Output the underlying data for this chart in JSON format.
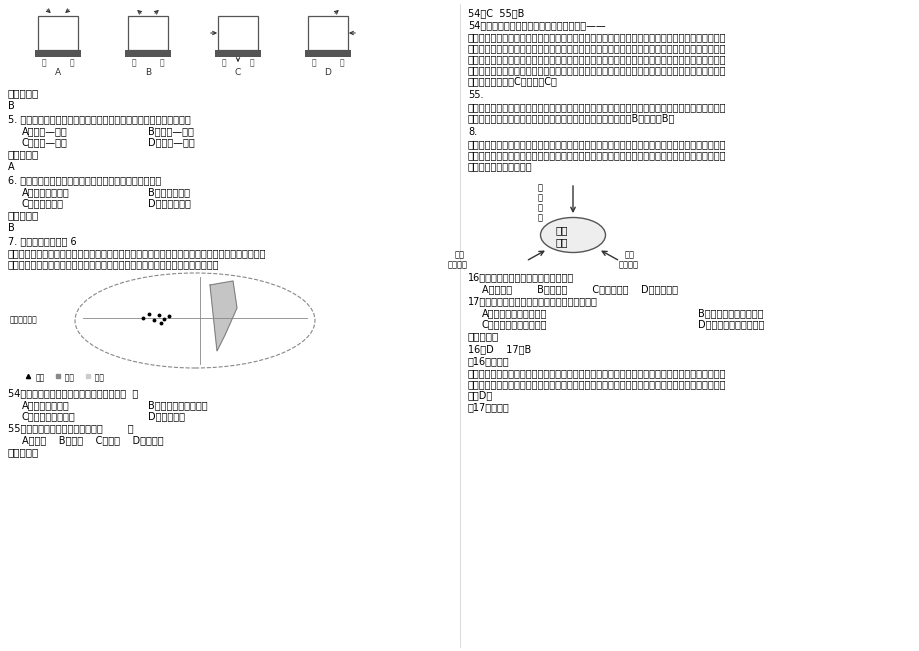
{
  "bg_color": "#ffffff",
  "text_color": "#000000",
  "q4_answer": "B",
  "q5_text": "5. 我国高速铁路网建成后，下列区段中，民航客运业受冲击最大的是",
  "q5_A": "A．武汉—广州",
  "q5_B": "B．杭州—上海",
  "q5_C": "C．成都—上海",
  "q5_D": "D．兰州—北京",
  "q5_answer": "A",
  "q6_text": "6. 亚洲水稻种植实现大规模机械化生产的主要限制条件是",
  "q6_A": "A．资金投入太多",
  "q6_B": "B．田地规模小",
  "q6_C": "C．降水量太小",
  "q6_D": "D．科技水平低",
  "q6_answer": "B",
  "q7_text": "7. 我国海南省某游客 6",
  "q7_body1": "月到费尔南迪纳岛旅行，他在朋友圈分享到：与家乡相比，这里甚是凉爽，靠海地带少见林木，但草",
  "q7_body2": "类茂盛，不时有大雾润通而来。下图示意费尔南迪纳岛位置，据此完成下面小题。",
  "q54_text": "54．该岛靠海地带少见林木的主要原因是（  ）",
  "q54_A": "A．盛行上升气流",
  "q54_B": "B．副热带高压的影响",
  "q54_C": "C．秘鲁寒流的影响",
  "q54_D": "D．地势较低",
  "q55_text": "55．该游客到此旅行，需要注意（        ）",
  "q55_opts": "A．防雨    B．防晒    C．防寒    D．防中暑",
  "r_answer_54_55": "54．C  55．B",
  "r_54_head": "54．费尔南迪纳岛最位于赤道，但受冷海流——",
  "r_54_1": "秘鲁寒流的影响。秘鲁寒流沿南美西海岸先向北流再转向西北流，费尔南迪纳岛被冷海流包围，使其",
  "r_54_2": "周围海水温度很低，当海面上空冷空气吹到岛上，使海岛的气温低，含水汽又少，再加上岛面积小，",
  "r_54_3": "海域小，空气对流小，使秘鲁海流的影响大于太阳辐射的影响，使气候凉爽干燥，草木茂盛。只有最",
  "r_54_4": "高山的东南坡因位于东南信风的迎风坡，能「截住」一些湿润气流，形成雨雾，因此海拔较高的过渡",
  "r_54_5": "地带覆盖有森林。C对，故选C。",
  "r_55_num": "55.",
  "r_55_1": "该岛处于赤道，又受到秘鲁寒流及东南信风的影响，大部分地区气候凉爽，干燥少雨，甚至无雨，晴",
  "r_55_2": "日多，纬度低，太阳高度角大，太阳辐射强，故需要注意防晒。B对，故选B。",
  "r_8_num": "8.",
  "r_8_1": "生产性服务业，是指为生产、商务活动而非直接向个体消费者提供服务的行业。生产性服务业在市中",
  "r_8_2": "心的集聚，形成集聚效应，但过度集聚也会产生一些城市问题。下图示意影响生产性服务业的三大因",
  "r_8_3": "素，该图回答下列各题。",
  "q16_text": "16．以下行业中属于生产性服务业的是",
  "q16_opts": "A．餐饮业        B．旅游业        C．家电生产    D．软件开发",
  "q17_text": "17．市中心大量的民用住宅转租成办公场所，是",
  "q17_A": "A．区位条件引起的扩散",
  "q17_B": "B．经济导向引起的集聚",
  "q17_C": "C．政府规划引起的集聚",
  "q17_D": "D．政府规划引起的扩散",
  "answer_16_17": "16．D    17．B",
  "q16_explain_label": "【16题详解】",
  "q16_exp1": "根据材料「生产性服务业，是指为生产、商务活动而非直接向个体消费者提供服务的行业」，选项中",
  "q16_exp2": "，餐饮业、旅游业、家电生产都直接面向消费者，只有软件开发，属于非直接面向个体消费者的行业",
  "q16_exp3": "，选D。",
  "q17_explain_label": "【17题详解】"
}
